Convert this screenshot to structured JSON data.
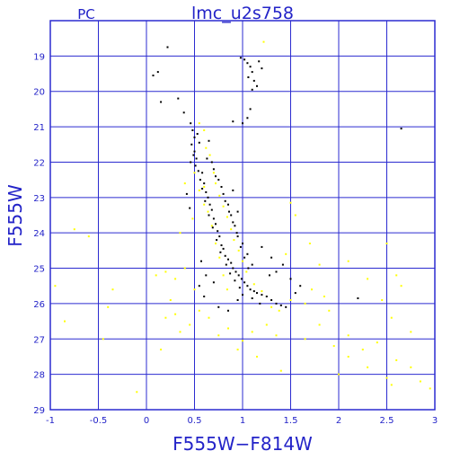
{
  "chart_data": {
    "type": "scatter",
    "title": "lmc_u2s758",
    "corner_label": "PC",
    "xlabel": "F555W−F814W",
    "ylabel": "F555W",
    "xlim": [
      -1,
      3
    ],
    "ylim": [
      29,
      18
    ],
    "y_inverted": true,
    "grid": true,
    "x_ticks": [
      -1,
      -0.5,
      0,
      0.5,
      1,
      1.5,
      2,
      2.5,
      3
    ],
    "x_tick_labels": [
      "-1",
      "-0.5",
      "0",
      "0.5",
      "1",
      "1.5",
      "2",
      "2.5",
      "3"
    ],
    "y_ticks": [
      19,
      20,
      21,
      22,
      23,
      24,
      25,
      26,
      27,
      28,
      29
    ],
    "y_tick_labels": [
      "19",
      "20",
      "21",
      "22",
      "23",
      "24",
      "25",
      "26",
      "27",
      "28",
      "29"
    ],
    "colors": {
      "axes": "#2b2bd0",
      "black_points": "#000000",
      "yellow_points": "#ffff00"
    },
    "series": [
      {
        "color": "black",
        "points": [
          [
            0.22,
            18.75
          ],
          [
            0.07,
            19.55
          ],
          [
            0.12,
            19.45
          ],
          [
            0.98,
            19.05
          ],
          [
            1.02,
            19.1
          ],
          [
            1.05,
            19.2
          ],
          [
            1.08,
            19.3
          ],
          [
            1.1,
            19.45
          ],
          [
            1.06,
            19.6
          ],
          [
            1.12,
            19.7
          ],
          [
            1.15,
            19.85
          ],
          [
            1.1,
            19.95
          ],
          [
            1.2,
            19.35
          ],
          [
            1.17,
            19.15
          ],
          [
            1.08,
            20.5
          ],
          [
            1.05,
            20.75
          ],
          [
            0.9,
            20.85
          ],
          [
            1.0,
            20.9
          ],
          [
            2.65,
            21.05
          ],
          [
            0.15,
            20.3
          ],
          [
            0.33,
            20.2
          ],
          [
            0.39,
            20.6
          ],
          [
            0.46,
            20.9
          ],
          [
            0.48,
            21.1
          ],
          [
            0.5,
            21.3
          ],
          [
            0.47,
            21.5
          ],
          [
            0.5,
            21.7
          ],
          [
            0.52,
            21.9
          ],
          [
            0.53,
            21.2
          ],
          [
            0.55,
            21.45
          ],
          [
            0.49,
            21.8
          ],
          [
            0.46,
            22.0
          ],
          [
            0.51,
            22.1
          ],
          [
            0.54,
            22.25
          ],
          [
            0.58,
            22.3
          ],
          [
            0.56,
            22.5
          ],
          [
            0.6,
            22.6
          ],
          [
            0.58,
            22.75
          ],
          [
            0.62,
            22.85
          ],
          [
            0.64,
            23.0
          ],
          [
            0.61,
            23.1
          ],
          [
            0.66,
            23.2
          ],
          [
            0.68,
            23.35
          ],
          [
            0.65,
            23.5
          ],
          [
            0.7,
            23.6
          ],
          [
            0.72,
            23.75
          ],
          [
            0.69,
            23.85
          ],
          [
            0.74,
            23.95
          ],
          [
            0.76,
            24.1
          ],
          [
            0.73,
            24.2
          ],
          [
            0.78,
            24.35
          ],
          [
            0.8,
            24.45
          ],
          [
            0.77,
            24.55
          ],
          [
            0.82,
            24.65
          ],
          [
            0.85,
            24.75
          ],
          [
            0.88,
            24.85
          ],
          [
            0.83,
            24.9
          ],
          [
            0.9,
            25.0
          ],
          [
            0.93,
            25.1
          ],
          [
            0.87,
            25.15
          ],
          [
            0.96,
            25.2
          ],
          [
            0.99,
            25.3
          ],
          [
            0.92,
            25.35
          ],
          [
            1.02,
            25.4
          ],
          [
            1.05,
            25.5
          ],
          [
            0.97,
            25.55
          ],
          [
            1.08,
            25.6
          ],
          [
            1.12,
            25.65
          ],
          [
            1.15,
            25.7
          ],
          [
            1.2,
            25.75
          ],
          [
            1.25,
            25.8
          ],
          [
            1.3,
            25.9
          ],
          [
            1.35,
            26.0
          ],
          [
            1.1,
            25.85
          ],
          [
            1.0,
            25.75
          ],
          [
            1.4,
            26.05
          ],
          [
            1.45,
            26.1
          ],
          [
            1.18,
            26.0
          ],
          [
            0.95,
            25.9
          ],
          [
            1.55,
            25.7
          ],
          [
            1.6,
            25.5
          ],
          [
            0.7,
            25.4
          ],
          [
            0.62,
            25.2
          ],
          [
            0.57,
            24.8
          ],
          [
            0.55,
            25.5
          ],
          [
            0.6,
            25.8
          ],
          [
            0.75,
            26.1
          ],
          [
            0.85,
            26.2
          ],
          [
            1.28,
            25.2
          ],
          [
            1.35,
            25.1
          ],
          [
            1.5,
            25.3
          ],
          [
            1.42,
            24.9
          ],
          [
            0.42,
            22.9
          ],
          [
            0.45,
            23.3
          ],
          [
            0.9,
            22.8
          ],
          [
            0.95,
            23.4
          ],
          [
            2.2,
            25.85
          ],
          [
            1.2,
            24.4
          ],
          [
            1.3,
            24.7
          ],
          [
            0.65,
            21.4
          ],
          [
            0.63,
            21.9
          ],
          [
            0.7,
            22.2
          ],
          [
            0.75,
            22.5
          ],
          [
            0.8,
            22.9
          ],
          [
            0.85,
            23.2
          ],
          [
            0.88,
            23.5
          ],
          [
            0.92,
            23.8
          ],
          [
            0.95,
            24.1
          ],
          [
            1.0,
            24.3
          ],
          [
            1.05,
            24.6
          ],
          [
            1.1,
            24.9
          ],
          [
            0.68,
            22.0
          ],
          [
            0.72,
            22.4
          ],
          [
            0.78,
            22.7
          ],
          [
            0.82,
            23.1
          ],
          [
            0.86,
            23.4
          ],
          [
            0.9,
            23.7
          ],
          [
            0.94,
            24.0
          ],
          [
            0.98,
            24.4
          ],
          [
            1.02,
            24.7
          ],
          [
            1.06,
            25.0
          ]
        ]
      },
      {
        "color": "yellow",
        "points": [
          [
            1.22,
            18.6
          ],
          [
            0.55,
            20.9
          ],
          [
            0.6,
            21.1
          ],
          [
            0.62,
            21.6
          ],
          [
            0.66,
            21.8
          ],
          [
            0.7,
            22.3
          ],
          [
            0.72,
            22.6
          ],
          [
            0.76,
            22.95
          ],
          [
            0.8,
            23.25
          ],
          [
            0.84,
            23.55
          ],
          [
            0.88,
            23.9
          ],
          [
            0.91,
            24.2
          ],
          [
            0.96,
            24.5
          ],
          [
            1.0,
            24.8
          ],
          [
            1.04,
            25.1
          ],
          [
            1.12,
            25.45
          ],
          [
            1.2,
            25.65
          ],
          [
            1.3,
            26.1
          ],
          [
            1.38,
            26.2
          ],
          [
            1.25,
            26.6
          ],
          [
            1.5,
            25.9
          ],
          [
            1.65,
            26.0
          ],
          [
            1.72,
            25.6
          ],
          [
            1.85,
            25.8
          ],
          [
            1.9,
            26.2
          ],
          [
            1.8,
            24.9
          ],
          [
            1.7,
            24.3
          ],
          [
            1.55,
            23.5
          ],
          [
            1.5,
            23.15
          ],
          [
            1.45,
            24.6
          ],
          [
            2.1,
            24.8
          ],
          [
            2.3,
            25.3
          ],
          [
            2.45,
            25.9
          ],
          [
            2.55,
            26.4
          ],
          [
            2.6,
            25.2
          ],
          [
            2.5,
            24.3
          ],
          [
            2.65,
            25.5
          ],
          [
            2.75,
            26.8
          ],
          [
            2.4,
            27.1
          ],
          [
            2.25,
            27.3
          ],
          [
            2.1,
            26.9
          ],
          [
            2.6,
            27.6
          ],
          [
            2.75,
            27.8
          ],
          [
            2.85,
            28.2
          ],
          [
            2.95,
            28.4
          ],
          [
            2.5,
            28.1
          ],
          [
            2.3,
            27.8
          ],
          [
            2.1,
            27.5
          ],
          [
            2.0,
            28.0
          ],
          [
            2.55,
            28.3
          ],
          [
            -0.95,
            25.5
          ],
          [
            -0.85,
            26.5
          ],
          [
            -0.75,
            23.9
          ],
          [
            -0.6,
            24.1
          ],
          [
            -0.35,
            25.6
          ],
          [
            -0.4,
            26.1
          ],
          [
            -0.45,
            27.0
          ],
          [
            -0.1,
            28.5
          ],
          [
            0.2,
            25.1
          ],
          [
            0.25,
            25.9
          ],
          [
            0.3,
            26.3
          ],
          [
            0.35,
            26.8
          ],
          [
            0.45,
            26.6
          ],
          [
            0.55,
            26.2
          ],
          [
            0.65,
            26.4
          ],
          [
            0.75,
            26.9
          ],
          [
            0.85,
            26.7
          ],
          [
            0.95,
            27.3
          ],
          [
            1.0,
            27.05
          ],
          [
            1.1,
            26.8
          ],
          [
            0.15,
            27.3
          ],
          [
            0.2,
            26.4
          ],
          [
            0.3,
            25.3
          ],
          [
            0.4,
            25.0
          ],
          [
            0.5,
            25.6
          ],
          [
            0.1,
            25.2
          ],
          [
            0.35,
            24.0
          ],
          [
            0.48,
            23.6
          ],
          [
            0.4,
            22.6
          ],
          [
            1.65,
            27.0
          ],
          [
            1.8,
            26.6
          ],
          [
            1.95,
            27.2
          ],
          [
            1.15,
            27.5
          ],
          [
            1.4,
            27.9
          ],
          [
            1.35,
            26.9
          ],
          [
            0.6,
            22.7
          ],
          [
            0.64,
            23.4
          ],
          [
            0.68,
            23.8
          ],
          [
            0.72,
            24.3
          ],
          [
            0.76,
            24.7
          ],
          [
            0.8,
            25.2
          ],
          [
            0.84,
            25.6
          ],
          [
            0.5,
            22.3
          ],
          [
            0.55,
            22.8
          ],
          [
            0.6,
            23.2
          ]
        ]
      }
    ]
  }
}
